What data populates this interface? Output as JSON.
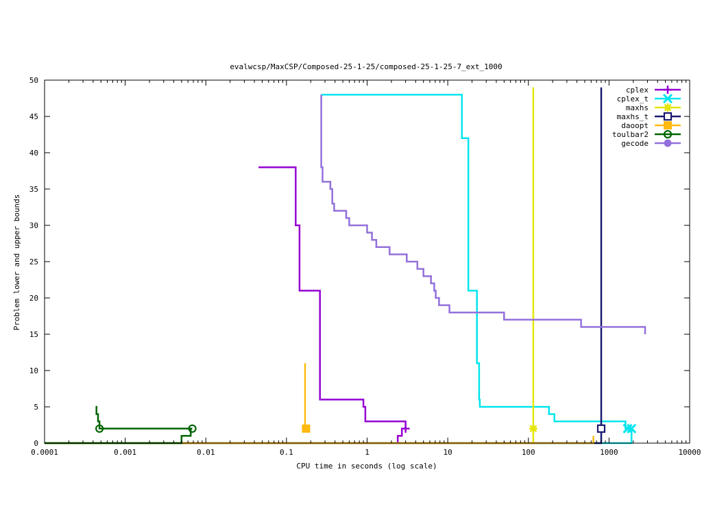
{
  "chart_data": {
    "type": "line",
    "title": "evalwcsp/MaxCSP/Composed-25-1-25/composed-25-1-25-7_ext_1000",
    "xlabel": "CPU time in seconds (log scale)",
    "ylabel": "Problem lower and upper bounds",
    "xscale": "log",
    "xlim": [
      0.0001,
      10000
    ],
    "ylim": [
      0,
      50
    ],
    "x_ticks": [
      {
        "v": 0.0001,
        "label": "0.0001"
      },
      {
        "v": 0.001,
        "label": "0.001"
      },
      {
        "v": 0.01,
        "label": "0.01"
      },
      {
        "v": 0.1,
        "label": "0.1"
      },
      {
        "v": 1,
        "label": "1"
      },
      {
        "v": 10,
        "label": "10"
      },
      {
        "v": 100,
        "label": "100"
      },
      {
        "v": 1000,
        "label": "1000"
      },
      {
        "v": 10000,
        "label": "10000"
      }
    ],
    "y_ticks": [
      {
        "v": 0,
        "label": "0"
      },
      {
        "v": 5,
        "label": "5"
      },
      {
        "v": 10,
        "label": "10"
      },
      {
        "v": 15,
        "label": "15"
      },
      {
        "v": 20,
        "label": "20"
      },
      {
        "v": 25,
        "label": "25"
      },
      {
        "v": 30,
        "label": "30"
      },
      {
        "v": 35,
        "label": "35"
      },
      {
        "v": 40,
        "label": "40"
      },
      {
        "v": 45,
        "label": "45"
      },
      {
        "v": 50,
        "label": "50"
      }
    ],
    "grid": false,
    "legend_position": "top-right",
    "series": [
      {
        "name": "cplex",
        "color": "#9400d3",
        "marker": "plus",
        "lines": [
          [
            [
              0.045,
              38
            ],
            [
              0.13,
              38
            ],
            [
              0.13,
              30
            ],
            [
              0.145,
              30
            ],
            [
              0.145,
              21
            ],
            [
              0.26,
              21
            ],
            [
              0.26,
              6
            ],
            [
              0.9,
              6
            ],
            [
              0.9,
              5
            ],
            [
              0.95,
              5
            ],
            [
              0.95,
              3
            ],
            [
              3.0,
              3
            ],
            [
              3.0,
              2
            ]
          ],
          [
            [
              2.4,
              0
            ],
            [
              2.4,
              1
            ],
            [
              2.7,
              1
            ],
            [
              2.7,
              2
            ],
            [
              3.0,
              2
            ]
          ]
        ],
        "markers": [
          [
            3.0,
            2
          ]
        ]
      },
      {
        "name": "cplex_t",
        "color": "#00e5ee",
        "marker": "star",
        "lines": [
          [
            [
              0.27,
              48
            ],
            [
              15,
              48
            ],
            [
              15,
              42
            ],
            [
              18,
              42
            ],
            [
              18,
              21
            ],
            [
              23,
              21
            ],
            [
              23,
              11
            ],
            [
              24.5,
              11
            ],
            [
              24.5,
              6
            ],
            [
              25,
              6
            ],
            [
              25,
              5
            ],
            [
              180,
              5
            ],
            [
              180,
              4
            ],
            [
              210,
              4
            ],
            [
              210,
              3
            ],
            [
              1600,
              3
            ],
            [
              1600,
              2
            ],
            [
              1900,
              2
            ]
          ],
          [
            [
              0.0001,
              0
            ],
            [
              1900,
              0
            ],
            [
              1900,
              2
            ]
          ]
        ],
        "markers": [
          [
            1700,
            2
          ],
          [
            1900,
            2
          ]
        ]
      },
      {
        "name": "maxhs",
        "color": "#e5e500",
        "marker": "asterisk",
        "lines": [
          [
            [
              115,
              49
            ],
            [
              115,
              2
            ]
          ],
          [
            [
              0.0001,
              0
            ],
            [
              115,
              0
            ],
            [
              115,
              2
            ]
          ]
        ],
        "markers": [
          [
            115,
            2
          ]
        ]
      },
      {
        "name": "maxhs_t",
        "color": "#191970",
        "marker": "square",
        "lines": [
          [
            [
              800,
              49
            ],
            [
              800,
              2
            ]
          ],
          [
            [
              0.0001,
              0
            ],
            [
              800,
              0
            ],
            [
              800,
              2
            ]
          ]
        ],
        "markers": [
          [
            800,
            2
          ]
        ]
      },
      {
        "name": "daoopt",
        "color": "#ffb90f",
        "marker": "filled-square",
        "lines": [
          [
            [
              0.17,
              11
            ],
            [
              0.17,
              2
            ]
          ],
          [
            [
              0.0001,
              0
            ],
            [
              640,
              0
            ],
            [
              640,
              1
            ]
          ]
        ],
        "markers": [
          [
            0.175,
            2
          ]
        ]
      },
      {
        "name": "toulbar2",
        "color": "#006400",
        "marker": "circle",
        "lines": [
          [
            [
              0.00043,
              5
            ],
            [
              0.00044,
              5
            ],
            [
              0.00044,
              4
            ],
            [
              0.00046,
              4
            ],
            [
              0.00046,
              3
            ],
            [
              0.00048,
              3
            ],
            [
              0.00048,
              2
            ],
            [
              0.0068,
              2
            ]
          ],
          [
            [
              0.0001,
              0
            ],
            [
              0.005,
              0
            ],
            [
              0.005,
              1
            ],
            [
              0.0065,
              1
            ],
            [
              0.0065,
              2
            ]
          ]
        ],
        "markers": [
          [
            0.00048,
            2
          ],
          [
            0.0068,
            2
          ]
        ]
      },
      {
        "name": "gecode",
        "color": "#9370db",
        "marker": "filled-circle",
        "lines": [
          [
            [
              0.27,
              48
            ],
            [
              0.27,
              38
            ],
            [
              0.28,
              38
            ],
            [
              0.28,
              36
            ],
            [
              0.35,
              36
            ],
            [
              0.35,
              35
            ],
            [
              0.37,
              35
            ],
            [
              0.37,
              33
            ],
            [
              0.39,
              33
            ],
            [
              0.39,
              32
            ],
            [
              0.55,
              32
            ],
            [
              0.55,
              31
            ],
            [
              0.6,
              31
            ],
            [
              0.6,
              30
            ],
            [
              1.0,
              30
            ],
            [
              1.0,
              29
            ],
            [
              1.15,
              29
            ],
            [
              1.15,
              28
            ],
            [
              1.3,
              28
            ],
            [
              1.3,
              27
            ],
            [
              1.9,
              27
            ],
            [
              1.9,
              26
            ],
            [
              3.1,
              26
            ],
            [
              3.1,
              25
            ],
            [
              4.2,
              25
            ],
            [
              4.2,
              24
            ],
            [
              5.0,
              24
            ],
            [
              5.0,
              23
            ],
            [
              6.2,
              23
            ],
            [
              6.2,
              22
            ],
            [
              6.8,
              22
            ],
            [
              6.8,
              21
            ],
            [
              7.1,
              21
            ],
            [
              7.1,
              20
            ],
            [
              7.8,
              20
            ],
            [
              7.8,
              19
            ],
            [
              10.5,
              19
            ],
            [
              10.5,
              18
            ],
            [
              50,
              18
            ],
            [
              50,
              17
            ],
            [
              450,
              17
            ],
            [
              450,
              16
            ],
            [
              2800,
              16
            ],
            [
              2800,
              15
            ]
          ]
        ],
        "markers": []
      }
    ]
  }
}
